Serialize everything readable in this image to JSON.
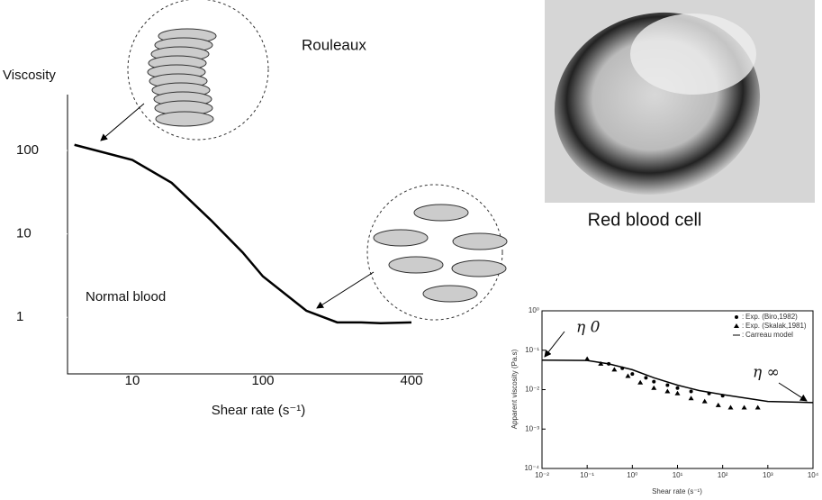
{
  "chart_data": [
    {
      "type": "line",
      "y_label": "Viscosity",
      "x_label": "Shear rate (s⁻¹)",
      "x": [
        3.6,
        10,
        20,
        40,
        70,
        100,
        150,
        200,
        250,
        300,
        400
      ],
      "values": [
        117,
        77,
        41,
        14.6,
        6.0,
        3.1,
        1.2,
        0.87,
        0.87,
        0.85,
        0.87
      ],
      "color": "#000000",
      "log_y": true,
      "ylim": [
        0.21,
        468
      ],
      "yticks": [
        1,
        10,
        100
      ],
      "xticks": [
        10,
        100,
        400
      ],
      "annotations": [
        "Rouleaux",
        "Normal blood"
      ]
    },
    {
      "type": "scatter",
      "y_label": "Apparent viscosity (Pa.s)",
      "x_label": "Shear rate (s⁻¹)",
      "log_x": true,
      "log_y": true,
      "xlim": [
        0.01,
        10000
      ],
      "ylim": [
        0.0001,
        1
      ],
      "xticks": [
        {
          "value": 0.01,
          "label": "10⁻²"
        },
        {
          "value": 0.1,
          "label": "10⁻¹"
        },
        {
          "value": 1,
          "label": "10⁰"
        },
        {
          "value": 10,
          "label": "10¹"
        },
        {
          "value": 100,
          "label": "10²"
        },
        {
          "value": 1000,
          "label": "10³"
        },
        {
          "value": 10000,
          "label": "10⁴"
        }
      ],
      "yticks": [
        {
          "value": 0.0001,
          "label": "10⁻⁴"
        },
        {
          "value": 0.001,
          "label": "10⁻³"
        },
        {
          "value": 0.01,
          "label": "10⁻²"
        },
        {
          "value": 0.1,
          "label": "10⁻¹"
        },
        {
          "value": 1,
          "label": "10⁰"
        }
      ],
      "series": [
        {
          "name": "Exp. (Biro,1982)",
          "marker": "circle",
          "color": "#000000",
          "x": [
            0.3,
            0.6,
            1,
            2,
            3,
            6,
            10,
            20,
            50,
            100
          ],
          "values": [
            0.045,
            0.035,
            0.025,
            0.02,
            0.016,
            0.013,
            0.011,
            0.009,
            0.008,
            0.007
          ]
        },
        {
          "name": "Exp. (Skalak,1981)",
          "marker": "triangle",
          "color": "#000000",
          "x": [
            0.1,
            0.2,
            0.4,
            0.8,
            1.5,
            3,
            6,
            10,
            20,
            40,
            80,
            150,
            300,
            600
          ],
          "values": [
            0.06,
            0.045,
            0.032,
            0.022,
            0.015,
            0.011,
            0.009,
            0.008,
            0.006,
            0.005,
            0.004,
            0.0035,
            0.0035,
            0.0035
          ]
        },
        {
          "name": "Carreau model",
          "marker": "line",
          "color": "#000000",
          "x": [
            0.01,
            0.1,
            0.3,
            1,
            3,
            10,
            30,
            100,
            1000,
            10000
          ],
          "values": [
            0.056,
            0.055,
            0.045,
            0.032,
            0.02,
            0.013,
            0.0095,
            0.0075,
            0.005,
            0.0047
          ]
        }
      ],
      "annotations": [
        "η 0",
        "η ∞"
      ]
    }
  ],
  "image_caption": "Red blood cell"
}
